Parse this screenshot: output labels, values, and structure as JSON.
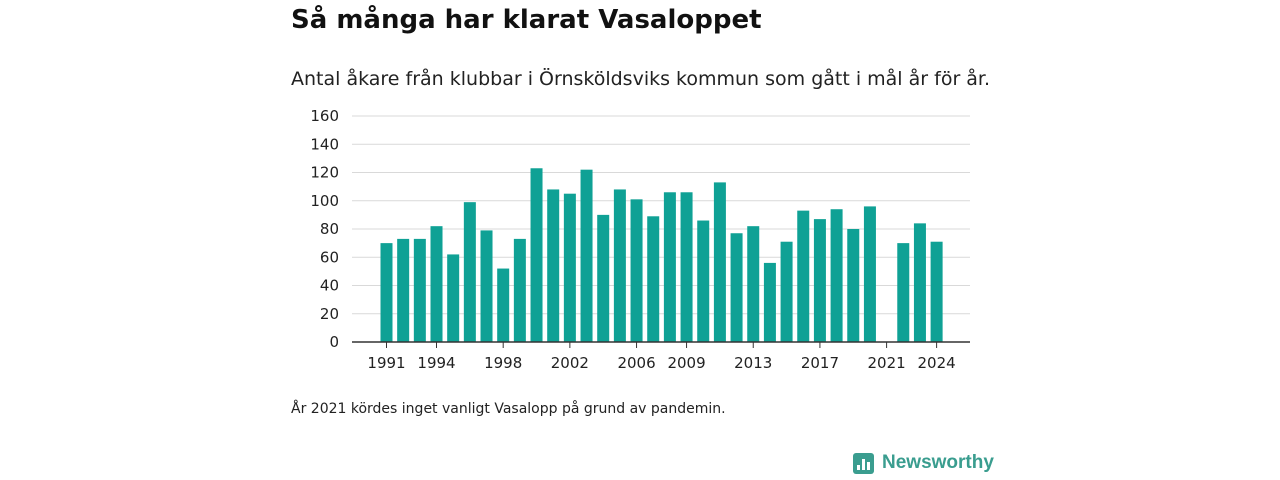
{
  "header": {
    "title": "Så många har klarat Vasaloppet",
    "subtitle": "Antal åkare från klubbar i Örnsköldsviks kommun som gått i mål år för år."
  },
  "footnote": "År 2021 kördes inget vanligt Vasalopp på grund av pandemin.",
  "branding": {
    "name": "Newsworthy",
    "icon": "newsworthy-logo-icon",
    "color": "#3a9d8f"
  },
  "chart_data": {
    "type": "bar",
    "categories": [
      1991,
      1992,
      1993,
      1994,
      1995,
      1996,
      1997,
      1998,
      1999,
      2000,
      2001,
      2002,
      2003,
      2004,
      2005,
      2006,
      2007,
      2008,
      2009,
      2010,
      2011,
      2012,
      2013,
      2014,
      2015,
      2016,
      2017,
      2018,
      2019,
      2020,
      2021,
      2022,
      2023,
      2024
    ],
    "values": [
      70,
      73,
      73,
      82,
      62,
      99,
      79,
      52,
      73,
      123,
      108,
      105,
      122,
      90,
      108,
      101,
      89,
      106,
      106,
      86,
      113,
      77,
      82,
      56,
      71,
      93,
      87,
      94,
      80,
      96,
      null,
      70,
      84,
      71
    ],
    "x_tick_labels": [
      "1991",
      "1994",
      "1998",
      "2002",
      "2006",
      "2009",
      "2013",
      "2017",
      "2021",
      "2024"
    ],
    "y_ticks": [
      0,
      20,
      40,
      60,
      80,
      100,
      120,
      140,
      160
    ],
    "ylim": [
      0,
      160
    ],
    "grid": true,
    "bar_color": "#0fa195",
    "xlabel": "",
    "ylabel": ""
  }
}
